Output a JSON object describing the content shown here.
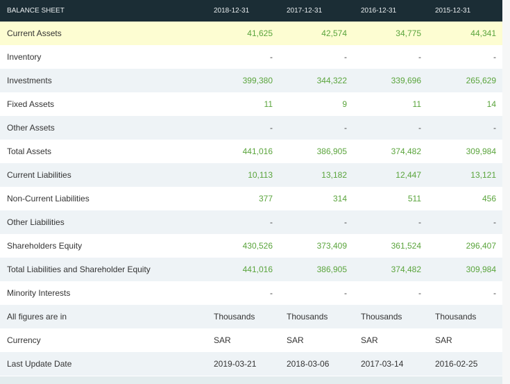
{
  "header": {
    "title": "BALANCE SHEET",
    "periods": [
      "2018-12-31",
      "2017-12-31",
      "2016-12-31",
      "2015-12-31"
    ]
  },
  "rows": [
    {
      "label": "Current Assets",
      "values": [
        "41,625",
        "42,574",
        "34,775",
        "44,341"
      ],
      "highlighted": true
    },
    {
      "label": "Inventory",
      "values": [
        "-",
        "-",
        "-",
        "-"
      ]
    },
    {
      "label": "Investments",
      "values": [
        "399,380",
        "344,322",
        "339,696",
        "265,629"
      ]
    },
    {
      "label": "Fixed Assets",
      "values": [
        "11",
        "9",
        "11",
        "14"
      ]
    },
    {
      "label": "Other Assets",
      "values": [
        "-",
        "-",
        "-",
        "-"
      ]
    },
    {
      "label": "Total Assets",
      "values": [
        "441,016",
        "386,905",
        "374,482",
        "309,984"
      ]
    },
    {
      "label": "Current Liabilities",
      "values": [
        "10,113",
        "13,182",
        "12,447",
        "13,121"
      ]
    },
    {
      "label": "Non-Current Liabilities",
      "values": [
        "377",
        "314",
        "511",
        "456"
      ]
    },
    {
      "label": "Other Liabilities",
      "values": [
        "-",
        "-",
        "-",
        "-"
      ]
    },
    {
      "label": "Shareholders Equity",
      "values": [
        "430,526",
        "373,409",
        "361,524",
        "296,407"
      ]
    },
    {
      "label": "Total Liabilities and Shareholder Equity",
      "values": [
        "441,016",
        "386,905",
        "374,482",
        "309,984"
      ]
    },
    {
      "label": "Minority Interests",
      "values": [
        "-",
        "-",
        "-",
        "-"
      ]
    }
  ],
  "meta_rows": [
    {
      "label": "All figures are in",
      "values": [
        "Thousands",
        "Thousands",
        "Thousands",
        "Thousands"
      ]
    },
    {
      "label": "Currency",
      "values": [
        "SAR",
        "SAR",
        "SAR",
        "SAR"
      ]
    },
    {
      "label": "Last Update Date",
      "values": [
        "2019-03-21",
        "2018-03-06",
        "2017-03-14",
        "2016-02-25"
      ]
    }
  ],
  "colors": {
    "header_bg": "#1b2d35",
    "highlight_row": "#fdfdd2",
    "stripe_row": "#eef3f6",
    "value_green": "#5aa43c"
  }
}
